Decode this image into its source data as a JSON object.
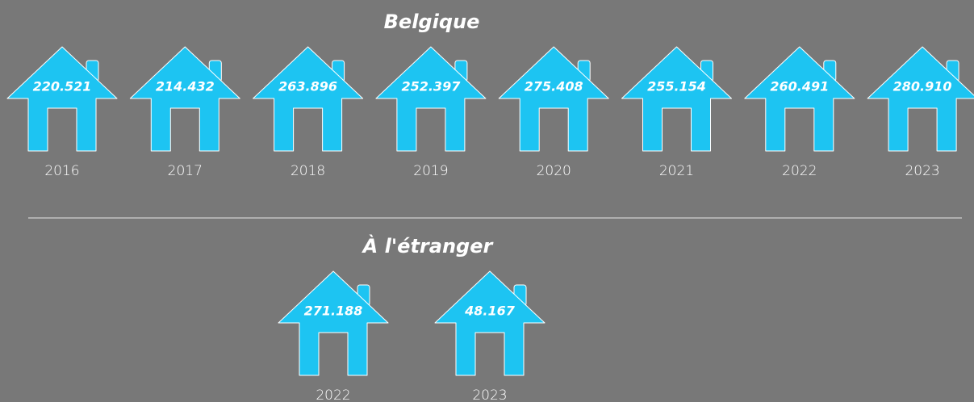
{
  "sections": [
    {
      "title": "Belgique",
      "items": [
        {
          "year": "2016",
          "value": "220.521"
        },
        {
          "year": "2017",
          "value": "214.432"
        },
        {
          "year": "2018",
          "value": "263.896"
        },
        {
          "year": "2019",
          "value": "252.397"
        },
        {
          "year": "2020",
          "value": "275.408"
        },
        {
          "year": "2021",
          "value": "255.154"
        },
        {
          "year": "2022",
          "value": "260.491"
        },
        {
          "year": "2023",
          "value": "280.910"
        }
      ]
    },
    {
      "title": "À l'étranger",
      "items": [
        {
          "year": "2022",
          "value": "271.188"
        },
        {
          "year": "2023",
          "value": "48.167"
        }
      ]
    }
  ]
}
